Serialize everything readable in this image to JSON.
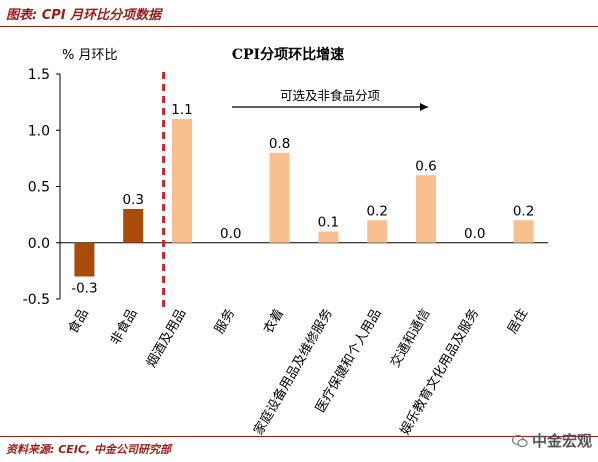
{
  "header": {
    "title": "图表: CPI 月环比分项数据"
  },
  "footer": {
    "source": "资料来源: CEIC, 中金公司研究部",
    "watermark": "中金宏观"
  },
  "colors": {
    "food": "#a84b0b",
    "core": "#f7c08e",
    "divider": "#d0202a",
    "rule": "#9b1b1b"
  },
  "chart_data": {
    "type": "bar",
    "title": "CPI分项环比增速",
    "ylabel": "% 月环比",
    "ylim": [
      -0.5,
      1.5
    ],
    "yticks": [
      -0.5,
      0.0,
      0.5,
      1.0,
      1.5
    ],
    "ytick_labels": [
      "-0.5",
      "0.0",
      "0.5",
      "1.0",
      "1.5"
    ],
    "categories": [
      "食品",
      "非食品",
      "烟酒及用品",
      "服务",
      "衣着",
      "家庭设备用品及维修服务",
      "医疗保健和个人用品",
      "交通和通信",
      "娱乐教育文化用品及服务",
      "居住"
    ],
    "values": [
      -0.3,
      0.3,
      1.1,
      0.0,
      0.8,
      0.1,
      0.2,
      0.6,
      0.0,
      0.2
    ],
    "value_labels": [
      "-0.3",
      "0.3",
      "1.1",
      "0.0",
      "0.8",
      "0.1",
      "0.2",
      "0.6",
      "0.0",
      "0.2"
    ],
    "bar_colors": [
      "#a84b0b",
      "#a84b0b",
      "#f7c08e",
      "#f7c08e",
      "#f7c08e",
      "#f7c08e",
      "#f7c08e",
      "#f7c08e",
      "#f7c08e",
      "#f7c08e"
    ],
    "annotation": "可选及非食品分项",
    "grid": false
  }
}
